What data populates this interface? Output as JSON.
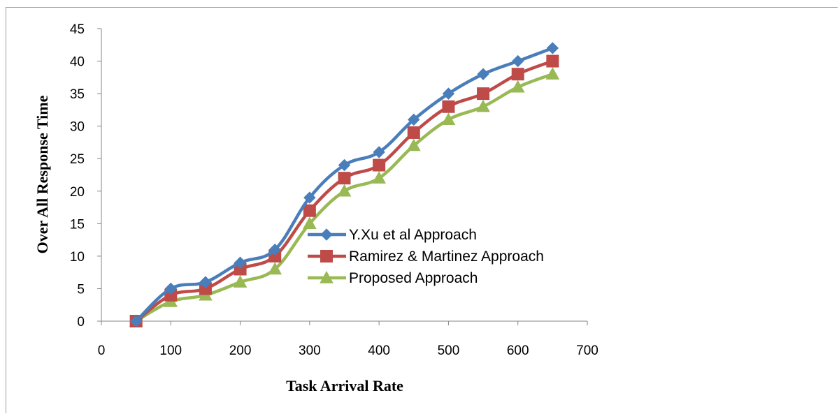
{
  "chart_data": {
    "type": "line",
    "title": "",
    "xlabel": "Task Arrival Rate",
    "ylabel": "Over All Response Time",
    "xlim": [
      0,
      700
    ],
    "ylim": [
      0,
      45
    ],
    "xticks": [
      0,
      100,
      200,
      300,
      400,
      500,
      600,
      700
    ],
    "yticks": [
      0,
      5,
      10,
      15,
      20,
      25,
      30,
      35,
      40,
      45
    ],
    "grid": false,
    "legend_position": "center",
    "x": [
      50,
      100,
      150,
      200,
      250,
      300,
      350,
      400,
      450,
      500,
      550,
      600,
      650
    ],
    "series": [
      {
        "name": "Y.Xu et al Approach",
        "color": "#4a7ebb",
        "marker": "diamond",
        "values": [
          0,
          5,
          6,
          9,
          11,
          19,
          24,
          26,
          31,
          35,
          38,
          40,
          42
        ]
      },
      {
        "name": "Ramirez & Martinez  Approach",
        "color": "#be4b48",
        "marker": "square",
        "values": [
          0,
          4,
          5,
          8,
          10,
          17,
          22,
          24,
          29,
          33,
          35,
          38,
          40
        ]
      },
      {
        "name": "Proposed Approach",
        "color": "#98b954",
        "marker": "triangle",
        "values": [
          0,
          3,
          4,
          6,
          8,
          15,
          20,
          22,
          27,
          31,
          33,
          36,
          38
        ]
      }
    ]
  }
}
